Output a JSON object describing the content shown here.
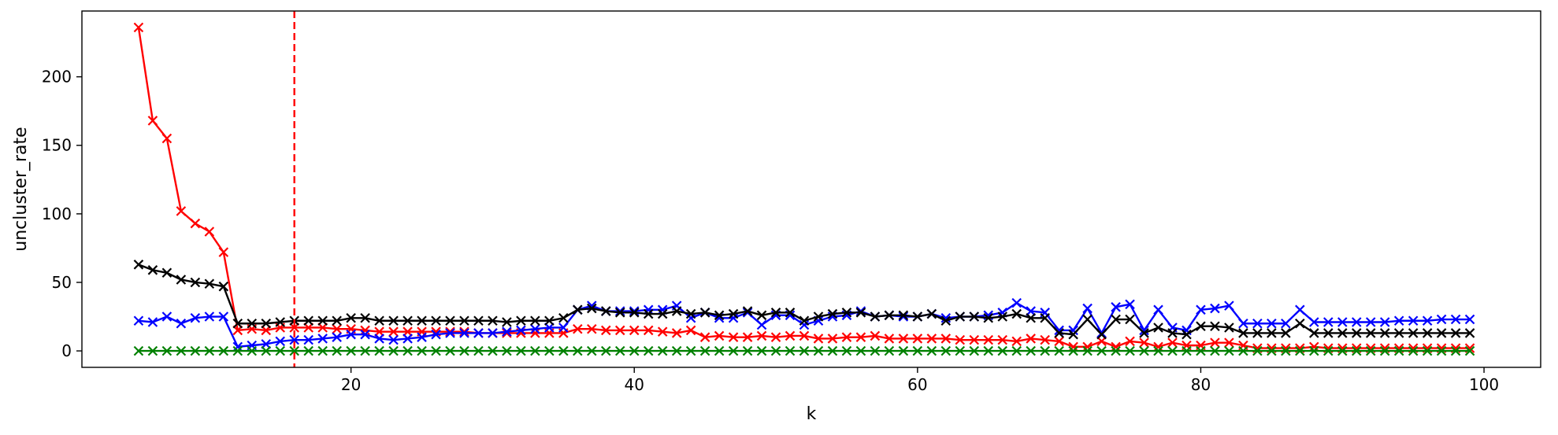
{
  "chart_data": {
    "type": "line",
    "xlabel": "k",
    "ylabel": "uncluster_rate",
    "xlim": [
      1,
      104
    ],
    "ylim": [
      -12,
      248
    ],
    "xticks": [
      20,
      40,
      60,
      80,
      100
    ],
    "yticks": [
      0,
      50,
      100,
      150,
      200
    ],
    "grid": false,
    "marker": "x",
    "reference_line": {
      "orientation": "vertical",
      "x": 16,
      "style": "dashed",
      "color": "#ff0000"
    },
    "x": [
      5,
      6,
      7,
      8,
      9,
      10,
      11,
      12,
      13,
      14,
      15,
      16,
      17,
      18,
      19,
      20,
      21,
      22,
      23,
      24,
      25,
      26,
      27,
      28,
      29,
      30,
      31,
      32,
      33,
      34,
      35,
      36,
      37,
      38,
      39,
      40,
      41,
      42,
      43,
      44,
      45,
      46,
      47,
      48,
      49,
      50,
      51,
      52,
      53,
      54,
      55,
      56,
      57,
      58,
      59,
      60,
      61,
      62,
      63,
      64,
      65,
      66,
      67,
      68,
      69,
      70,
      71,
      72,
      73,
      74,
      75,
      76,
      77,
      78,
      79,
      80,
      81,
      82,
      83,
      84,
      85,
      86,
      87,
      88,
      89,
      90,
      91,
      92,
      93,
      94,
      95,
      96,
      97,
      98,
      99
    ],
    "series": [
      {
        "color": "#ff0000",
        "values": [
          236,
          168,
          155,
          102,
          93,
          87,
          72,
          15,
          16,
          15,
          17,
          17,
          17,
          17,
          16,
          16,
          15,
          14,
          14,
          14,
          14,
          14,
          14,
          14,
          13,
          13,
          13,
          13,
          13,
          13,
          13,
          16,
          16,
          15,
          15,
          15,
          15,
          14,
          13,
          15,
          10,
          11,
          10,
          10,
          11,
          10,
          11,
          11,
          9,
          9,
          10,
          10,
          11,
          9,
          9,
          9,
          9,
          9,
          8,
          8,
          8,
          8,
          7,
          9,
          8,
          7,
          3,
          3,
          7,
          3,
          7,
          6,
          3,
          6,
          4,
          4,
          6,
          6,
          4,
          2,
          2,
          2,
          2,
          3,
          2,
          2,
          2,
          2,
          2,
          2,
          2,
          2,
          2,
          2,
          2
        ]
      },
      {
        "color": "#0000ff",
        "values": [
          22,
          21,
          25,
          20,
          24,
          25,
          25,
          3,
          4,
          5,
          7,
          8,
          8,
          9,
          10,
          12,
          12,
          9,
          8,
          9,
          10,
          12,
          13,
          13,
          13,
          13,
          14,
          15,
          16,
          17,
          17,
          30,
          33,
          29,
          29,
          29,
          30,
          30,
          33,
          24,
          28,
          24,
          24,
          28,
          19,
          26,
          26,
          19,
          22,
          25,
          26,
          29,
          25,
          26,
          25,
          25,
          27,
          24,
          25,
          25,
          26,
          28,
          35,
          29,
          28,
          15,
          15,
          31,
          13,
          32,
          34,
          15,
          30,
          17,
          15,
          30,
          31,
          33,
          20,
          20,
          20,
          20,
          30,
          21,
          21,
          21,
          21,
          21,
          21,
          22,
          22,
          22,
          23,
          23,
          23
        ]
      },
      {
        "color": "#008000",
        "values": [
          0,
          0,
          0,
          0,
          0,
          0,
          0,
          0,
          0,
          0,
          0,
          0,
          0,
          0,
          0,
          0,
          0,
          0,
          0,
          0,
          0,
          0,
          0,
          0,
          0,
          0,
          0,
          0,
          0,
          0,
          0,
          0,
          0,
          0,
          0,
          0,
          0,
          0,
          0,
          0,
          0,
          0,
          0,
          0,
          0,
          0,
          0,
          0,
          0,
          0,
          0,
          0,
          0,
          0,
          0,
          0,
          0,
          0,
          0,
          0,
          0,
          0,
          0,
          0,
          0,
          0,
          0,
          0,
          0,
          0,
          0,
          0,
          0,
          0,
          0,
          0,
          0,
          0,
          0,
          0,
          0,
          0,
          0,
          0,
          0,
          0,
          0,
          0,
          0,
          0,
          0,
          0,
          0,
          0,
          0
        ]
      },
      {
        "color": "#000000",
        "values": [
          63,
          59,
          57,
          52,
          50,
          49,
          47,
          20,
          20,
          20,
          21,
          22,
          22,
          22,
          22,
          24,
          24,
          22,
          22,
          22,
          22,
          22,
          22,
          22,
          22,
          22,
          21,
          22,
          22,
          22,
          24,
          30,
          31,
          29,
          28,
          28,
          27,
          27,
          29,
          27,
          28,
          26,
          27,
          29,
          26,
          28,
          28,
          22,
          25,
          27,
          28,
          28,
          25,
          26,
          26,
          25,
          27,
          22,
          25,
          25,
          24,
          25,
          27,
          24,
          24,
          13,
          12,
          23,
          12,
          23,
          23,
          13,
          17,
          13,
          12,
          18,
          18,
          17,
          13,
          13,
          13,
          13,
          20,
          13,
          13,
          13,
          13,
          13,
          13,
          13,
          13,
          13,
          13,
          13,
          13
        ]
      }
    ]
  }
}
